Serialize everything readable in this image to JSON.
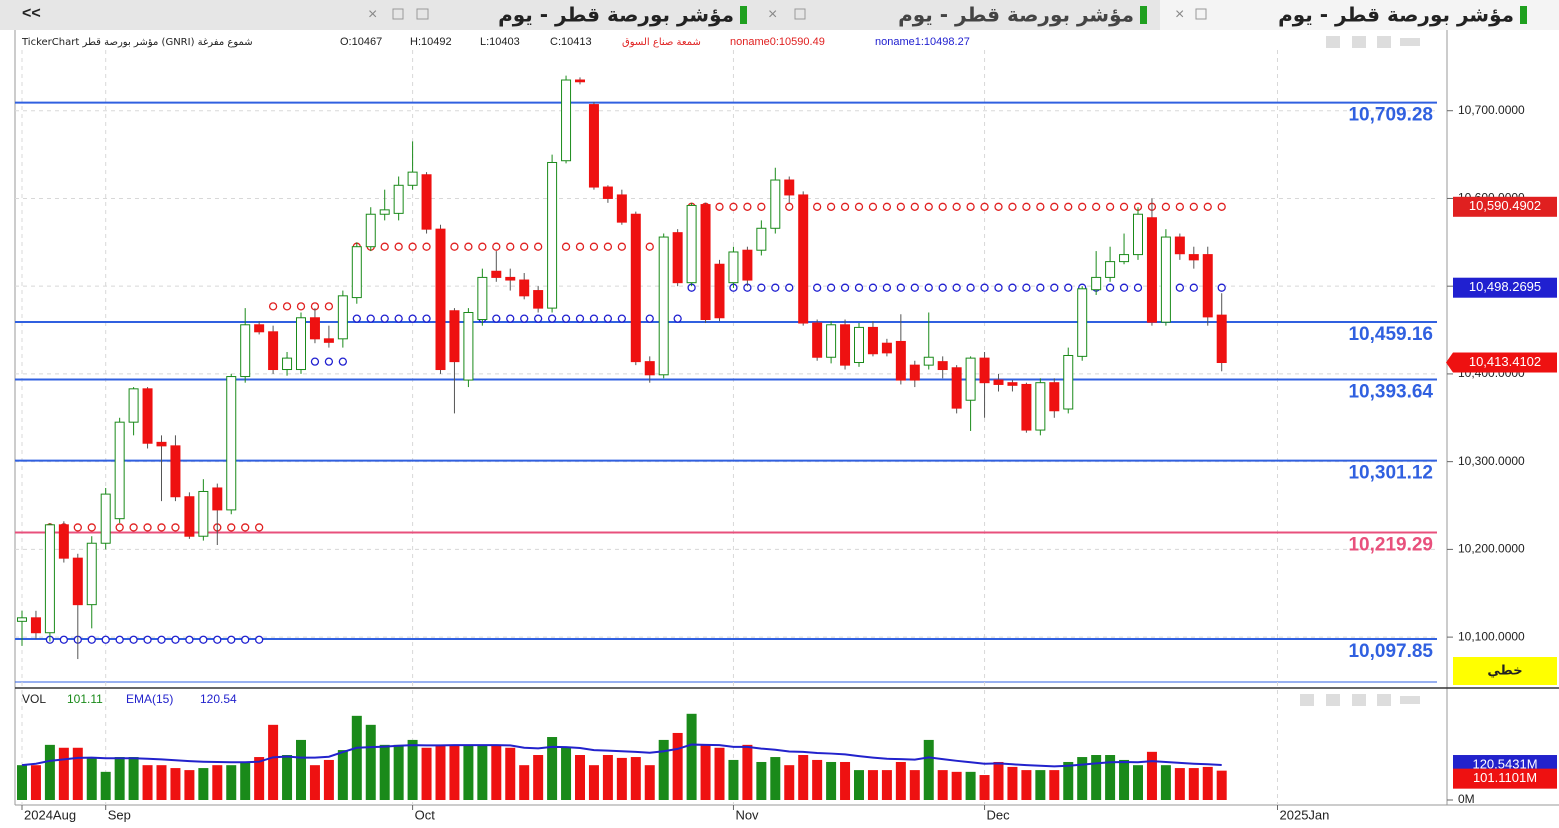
{
  "tabs": [
    {
      "title": "مؤشر بورصة قطر - يوم"
    },
    {
      "title": "مؤشر بورصة قطر - يوم"
    },
    {
      "title": "مؤشر بورصة قطر - يوم"
    }
  ],
  "collapse": "<<",
  "header": {
    "source": "TickerChart مؤشر بورصة قطر (GNRI) شموع مفرغة",
    "open": "O:10467",
    "high": "H:10492",
    "low": "L:10403",
    "close": "C:10413",
    "study": "شمعة صناع السوق",
    "noname0": "noname0:10590.49",
    "noname1": "noname1:10498.27"
  },
  "line_mode": "خطي",
  "chart_data": [
    {
      "type": "candlestick",
      "categories": [
        "2024Aug",
        null,
        null,
        null,
        null,
        null,
        "Sep",
        null,
        null,
        null,
        null,
        null,
        null,
        null,
        null,
        null,
        null,
        null,
        null,
        null,
        null,
        null,
        null,
        null,
        null,
        null,
        null,
        null,
        "Oct",
        null,
        null,
        null,
        null,
        null,
        null,
        null,
        null,
        null,
        null,
        null,
        null,
        null,
        null,
        null,
        null,
        null,
        null,
        null,
        null,
        null,
        null,
        "Nov",
        null,
        null,
        null,
        null,
        null,
        null,
        null,
        null,
        null,
        null,
        null,
        null,
        null,
        null,
        null,
        null,
        null,
        "Dec",
        null,
        null,
        null,
        null,
        null,
        null,
        null,
        null,
        null,
        null,
        null,
        null,
        null,
        null,
        null,
        null,
        null,
        null,
        null,
        null,
        "2025Jan"
      ],
      "open": [
        10118,
        10122,
        10105,
        10228,
        10190,
        10137,
        10207,
        10235,
        10345,
        10383,
        10322,
        10318,
        10260,
        10215,
        10270,
        10245,
        10397,
        10456,
        10448,
        10405,
        10405,
        10464,
        10440,
        10440,
        10487,
        10545,
        10582,
        10583,
        10615,
        10627,
        10565,
        10472,
        10393,
        10462,
        10517,
        10510,
        10507,
        10495,
        10475,
        10643,
        10735,
        10707,
        10613,
        10604,
        10582,
        10414,
        10399,
        10561,
        10504,
        10593,
        10525,
        10504,
        10541,
        10541,
        10566,
        10621,
        10604,
        10458,
        10419,
        10456,
        10413,
        10453,
        10435,
        10437,
        10410,
        10410,
        10414,
        10407,
        10370,
        10418,
        10393,
        10390,
        10388,
        10336,
        10390,
        10360,
        10420,
        10496,
        10510,
        10528,
        10536,
        10578,
        10459,
        10556,
        10536,
        10536,
        10467,
        null,
        null,
        null,
        null
      ],
      "high": [
        10130,
        10130,
        10230,
        10232,
        10195,
        10215,
        10270,
        10350,
        10385,
        10385,
        10330,
        10330,
        10265,
        10280,
        10275,
        10400,
        10475,
        10460,
        10455,
        10425,
        10470,
        10475,
        10455,
        10495,
        10550,
        10590,
        10610,
        10625,
        10665,
        10630,
        10570,
        10475,
        10475,
        10520,
        10540,
        10520,
        10515,
        10500,
        10650,
        10740,
        10738,
        10710,
        10615,
        10610,
        10585,
        10420,
        10560,
        10565,
        10595,
        10595,
        10530,
        10545,
        10545,
        10575,
        10635,
        10625,
        10608,
        10462,
        10460,
        10462,
        10458,
        10460,
        10440,
        10468,
        10415,
        10470,
        10420,
        10410,
        10420,
        10425,
        10400,
        10393,
        10390,
        10395,
        10395,
        10430,
        10500,
        10540,
        10545,
        10560,
        10590,
        10600,
        10565,
        10560,
        10545,
        10545,
        10492,
        null,
        null,
        null,
        null
      ],
      "low": [
        10090,
        10098,
        10095,
        10185,
        10075,
        10110,
        10200,
        10230,
        10330,
        10315,
        10255,
        10255,
        10212,
        10210,
        10205,
        10240,
        10390,
        10445,
        10400,
        10398,
        10400,
        10435,
        10430,
        10430,
        10480,
        10540,
        10575,
        10575,
        10610,
        10560,
        10400,
        10355,
        10385,
        10455,
        10505,
        10495,
        10485,
        10470,
        10470,
        10640,
        10730,
        10610,
        10595,
        10570,
        10410,
        10390,
        10395,
        10500,
        10500,
        10458,
        10460,
        10498,
        10500,
        10535,
        10560,
        10595,
        10455,
        10415,
        10412,
        10405,
        10408,
        10420,
        10420,
        10388,
        10385,
        10405,
        10395,
        10355,
        10335,
        10350,
        10380,
        10380,
        10333,
        10330,
        10350,
        10355,
        10415,
        10490,
        10505,
        10525,
        10530,
        10455,
        10455,
        10530,
        10520,
        10455,
        10403,
        null,
        null,
        null,
        null
      ],
      "close": [
        10122,
        10105,
        10228,
        10190,
        10137,
        10207,
        10263,
        10345,
        10383,
        10321,
        10318,
        10260,
        10215,
        10266,
        10245,
        10397,
        10456,
        10448,
        10405,
        10418,
        10464,
        10440,
        10436,
        10489,
        10545,
        10582,
        10587,
        10615,
        10630,
        10565,
        10405,
        10414,
        10470,
        10510,
        10510,
        10507,
        10489,
        10475,
        10641,
        10735,
        10733,
        10613,
        10600,
        10573,
        10414,
        10399,
        10556,
        10504,
        10592,
        10462,
        10464,
        10539,
        10507,
        10566,
        10621,
        10604,
        10458,
        10419,
        10456,
        10410,
        10453,
        10423,
        10424,
        10393,
        10393,
        10419,
        10405,
        10361,
        10418,
        10390,
        10388,
        10387,
        10336,
        10390,
        10358,
        10421,
        10497,
        10510,
        10528,
        10536,
        10582,
        10459,
        10556,
        10537,
        10530,
        10465,
        10413,
        null,
        null,
        null,
        null
      ],
      "up_color": "#1a8a1a",
      "down_color": "#ee1111",
      "series": [
        {
          "name": "noname0",
          "color": "#e02020",
          "values": [
            null,
            null,
            10225,
            10225,
            10225,
            10225,
            10225,
            10225,
            10225,
            10225,
            10225,
            10225,
            10225,
            10225,
            10225,
            10225,
            10225,
            10225,
            10477,
            10477,
            10477,
            10477,
            10477,
            10477,
            10545,
            10545,
            10545,
            10545,
            10545,
            10545,
            10545,
            10545,
            10545,
            10545,
            10545,
            10545,
            10545,
            10545,
            10545,
            10545,
            10545,
            10545,
            10545,
            10545,
            10545,
            10545,
            10545,
            null,
            10590.49,
            10590.49,
            10590.49,
            10590.49,
            10590.49,
            10590.49,
            10590.49,
            10590.49,
            10590.49,
            10590.49,
            10590.49,
            10590.49,
            10590.49,
            10590.49,
            10590.49,
            10590.49,
            10590.49,
            10590.49,
            10590.49,
            10590.49,
            10590.49,
            10590.49,
            10590.49,
            10590.49,
            10590.49,
            10590.49,
            10590.49,
            10590.49,
            10590.49,
            10590.49,
            10590.49,
            10590.49,
            10590.49,
            10590.49,
            10590.49,
            10590.49,
            10590.49,
            10590.49,
            10590.49,
            null,
            null,
            null,
            null
          ]
        },
        {
          "name": "noname1",
          "color": "#2020d0",
          "values": [
            null,
            null,
            10097,
            10097,
            10097,
            10097,
            10097,
            10097,
            10097,
            10097,
            10097,
            10097,
            10097,
            10097,
            10097,
            10097,
            10097,
            10097,
            10414,
            10414,
            10414,
            10414,
            10414,
            10414,
            10463,
            10463,
            10463,
            10463,
            10463,
            10463,
            10463,
            10463,
            10463,
            10463,
            10463,
            10463,
            10463,
            10463,
            10463,
            10463,
            10463,
            10463,
            10463,
            10463,
            10463,
            10463,
            10463,
            10463,
            10498.27,
            10498.27,
            10498.27,
            10498.27,
            10498.27,
            10498.27,
            10498.27,
            10498.27,
            10498.27,
            10498.27,
            10498.27,
            10498.27,
            10498.27,
            10498.27,
            10498.27,
            10498.27,
            10498.27,
            10498.27,
            10498.27,
            10498.27,
            10498.27,
            10498.27,
            10498.27,
            10498.27,
            10498.27,
            10498.27,
            10498.27,
            10498.27,
            10498.27,
            10498.27,
            10498.27,
            10498.27,
            10498.27,
            10498.27,
            10498.27,
            10498.27,
            10498.27,
            10498.27,
            10498.27,
            null,
            null,
            null,
            null
          ]
        }
      ],
      "last_labels": [
        "10,590.4902",
        "10,498.2695",
        "10,413.4102"
      ],
      "levels": [
        {
          "value": 10709.28,
          "label": "10,709.28",
          "color": "#3060e0"
        },
        {
          "value": 10459.16,
          "label": "10,459.16",
          "color": "#3060e0"
        },
        {
          "value": 10393.64,
          "label": "10,393.64",
          "color": "#3060e0"
        },
        {
          "value": 10301.12,
          "label": "10,301.12",
          "color": "#3060e0"
        },
        {
          "value": 10219.29,
          "label": "10,219.29",
          "color": "#e8507c"
        },
        {
          "value": 10097.85,
          "label": "10,097.85",
          "color": "#3060e0"
        }
      ],
      "ylim": [
        10042,
        10792
      ],
      "yticks": [
        {
          "value": 10100,
          "label": "10,100.0000"
        },
        {
          "value": 10200,
          "label": "10,200.0000"
        },
        {
          "value": 10300,
          "label": "10,300.0000"
        },
        {
          "value": 10400,
          "label": "10,400.0000"
        },
        {
          "value": 10500,
          "label": "10,500.0000"
        },
        {
          "value": 10600,
          "label": "10,600.0000"
        },
        {
          "value": 10700,
          "label": "10,700.0000"
        }
      ],
      "grid": true
    },
    {
      "type": "bar",
      "title": "VOL",
      "value_text": "101.11",
      "ema_title": "EMA(15)",
      "ema_text": "120.54",
      "values": [
        120,
        120,
        190,
        180,
        180,
        148,
        97,
        148,
        148,
        120,
        120,
        110,
        103,
        110,
        120,
        120,
        128,
        148,
        259,
        155,
        207,
        120,
        138,
        172,
        290,
        259,
        190,
        190,
        207,
        180,
        190,
        190,
        190,
        190,
        190,
        180,
        120,
        155,
        217,
        180,
        155,
        120,
        155,
        145,
        148,
        120,
        207,
        231,
        297,
        190,
        180,
        138,
        190,
        131,
        148,
        120,
        155,
        138,
        131,
        131,
        103,
        103,
        103,
        131,
        103,
        207,
        103,
        97,
        97,
        86,
        131,
        114,
        103,
        103,
        103,
        131,
        148,
        155,
        155,
        138,
        120,
        166,
        120,
        110,
        110,
        114,
        101.11,
        null,
        null,
        null,
        null
      ],
      "ema": [
        120,
        125,
        135,
        140,
        145,
        146,
        144,
        144,
        144,
        142,
        140,
        137,
        134,
        132,
        131,
        130,
        130,
        132,
        147,
        150,
        146,
        146,
        149,
        165,
        180,
        182,
        184,
        187,
        189,
        188,
        188,
        189,
        189,
        189,
        189,
        188,
        180,
        178,
        183,
        182,
        179,
        172,
        170,
        168,
        166,
        163,
        168,
        176,
        191,
        190,
        189,
        183,
        183,
        177,
        173,
        167,
        166,
        162,
        160,
        157,
        151,
        146,
        142,
        141,
        139,
        147,
        141,
        135,
        130,
        125,
        126,
        123,
        120,
        118,
        116,
        118,
        122,
        126,
        130,
        131,
        130,
        134,
        131,
        128,
        125,
        123,
        120.54,
        null,
        null,
        null,
        null
      ],
      "ema_color": "#2222cc",
      "last_labels": [
        "120.5431M",
        "101.1101M"
      ],
      "ylim": [
        0,
        379
      ],
      "yticks": [
        {
          "value": 0,
          "label": "0M"
        }
      ]
    }
  ]
}
